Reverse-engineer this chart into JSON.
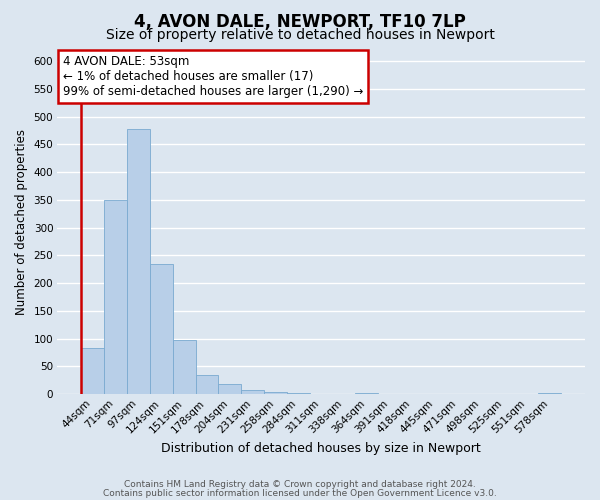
{
  "title": "4, AVON DALE, NEWPORT, TF10 7LP",
  "subtitle": "Size of property relative to detached houses in Newport",
  "xlabel": "Distribution of detached houses by size in Newport",
  "ylabel": "Number of detached properties",
  "bar_values": [
    83,
    350,
    478,
    235,
    97,
    35,
    18,
    8,
    3,
    2,
    0,
    0,
    2,
    0,
    0,
    0,
    0,
    0,
    0,
    0,
    2
  ],
  "bin_labels": [
    "44sqm",
    "71sqm",
    "97sqm",
    "124sqm",
    "151sqm",
    "178sqm",
    "204sqm",
    "231sqm",
    "258sqm",
    "284sqm",
    "311sqm",
    "338sqm",
    "364sqm",
    "391sqm",
    "418sqm",
    "445sqm",
    "471sqm",
    "498sqm",
    "525sqm",
    "551sqm",
    "578sqm"
  ],
  "bar_color": "#b8cfe8",
  "bar_edge_color": "#7aaad0",
  "highlight_color": "#cc0000",
  "annotation_box_text": "4 AVON DALE: 53sqm\n← 1% of detached houses are smaller (17)\n99% of semi-detached houses are larger (1,290) →",
  "ylim": [
    0,
    620
  ],
  "yticks": [
    0,
    50,
    100,
    150,
    200,
    250,
    300,
    350,
    400,
    450,
    500,
    550,
    600
  ],
  "footer_line1": "Contains HM Land Registry data © Crown copyright and database right 2024.",
  "footer_line2": "Contains public sector information licensed under the Open Government Licence v3.0.",
  "background_color": "#dce6f0",
  "plot_bg_color": "#dce6f0",
  "grid_color": "#ffffff",
  "title_fontsize": 12,
  "subtitle_fontsize": 10,
  "xlabel_fontsize": 9,
  "ylabel_fontsize": 8.5,
  "tick_fontsize": 7.5,
  "footer_fontsize": 6.5,
  "ann_fontsize": 8.5
}
